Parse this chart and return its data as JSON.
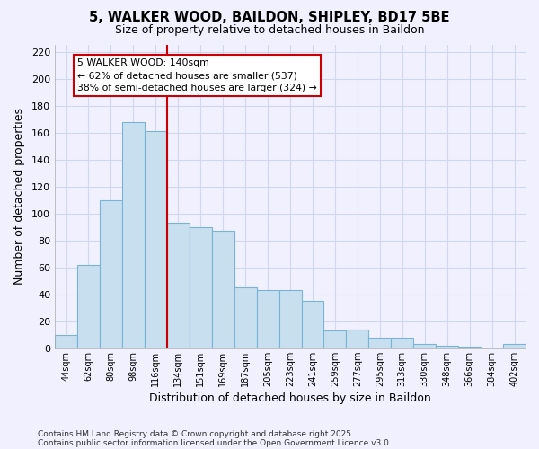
{
  "title": "5, WALKER WOOD, BAILDON, SHIPLEY, BD17 5BE",
  "subtitle": "Size of property relative to detached houses in Baildon",
  "xlabel": "Distribution of detached houses by size in Baildon",
  "ylabel": "Number of detached properties",
  "categories": [
    "44sqm",
    "62sqm",
    "80sqm",
    "98sqm",
    "116sqm",
    "134sqm",
    "151sqm",
    "169sqm",
    "187sqm",
    "205sqm",
    "223sqm",
    "241sqm",
    "259sqm",
    "277sqm",
    "295sqm",
    "313sqm",
    "330sqm",
    "348sqm",
    "366sqm",
    "384sqm",
    "402sqm"
  ],
  "values": [
    10,
    62,
    110,
    168,
    161,
    93,
    90,
    87,
    45,
    43,
    43,
    35,
    13,
    14,
    8,
    8,
    3,
    2,
    1,
    0,
    3
  ],
  "bar_color": "#c8dff0",
  "bar_edge_color": "#7ab4d4",
  "vline_x_index": 5,
  "vline_color": "#cc0000",
  "annotation_title": "5 WALKER WOOD: 140sqm",
  "annotation_line1": "← 62% of detached houses are smaller (537)",
  "annotation_line2": "38% of semi-detached houses are larger (324) →",
  "annotation_box_facecolor": "#ffffff",
  "annotation_box_edgecolor": "#cc0000",
  "ylim": [
    0,
    225
  ],
  "yticks": [
    0,
    20,
    40,
    60,
    80,
    100,
    120,
    140,
    160,
    180,
    200,
    220
  ],
  "footnote1": "Contains HM Land Registry data © Crown copyright and database right 2025.",
  "footnote2": "Contains public sector information licensed under the Open Government Licence v3.0.",
  "bg_color": "#f0f0ff",
  "grid_color": "#d0d8ee"
}
